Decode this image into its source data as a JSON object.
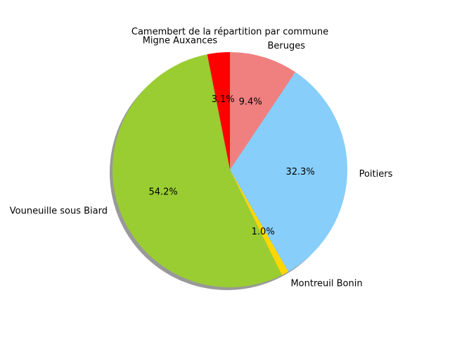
{
  "chart_data": {
    "type": "pie",
    "title": "Camembert de la répartition par commune",
    "start_angle_deg": 90,
    "direction": "counterclockwise",
    "shadow": true,
    "slices": [
      {
        "label": "Migne Auxances",
        "percent_label": "3.1%",
        "value": 3.1,
        "color": "#ff0000"
      },
      {
        "label": "Vouneuille sous Biard",
        "percent_label": "54.2%",
        "value": 54.2,
        "color": "#9acd32"
      },
      {
        "label": "Montreuil Bonin",
        "percent_label": "1.0%",
        "value": 1.0,
        "color": "#ffd700"
      },
      {
        "label": "Poitiers",
        "percent_label": "32.3%",
        "value": 32.3,
        "color": "#87cefa"
      },
      {
        "label": "Beruges",
        "percent_label": "9.4%",
        "value": 9.4,
        "color": "#f08080"
      }
    ]
  }
}
